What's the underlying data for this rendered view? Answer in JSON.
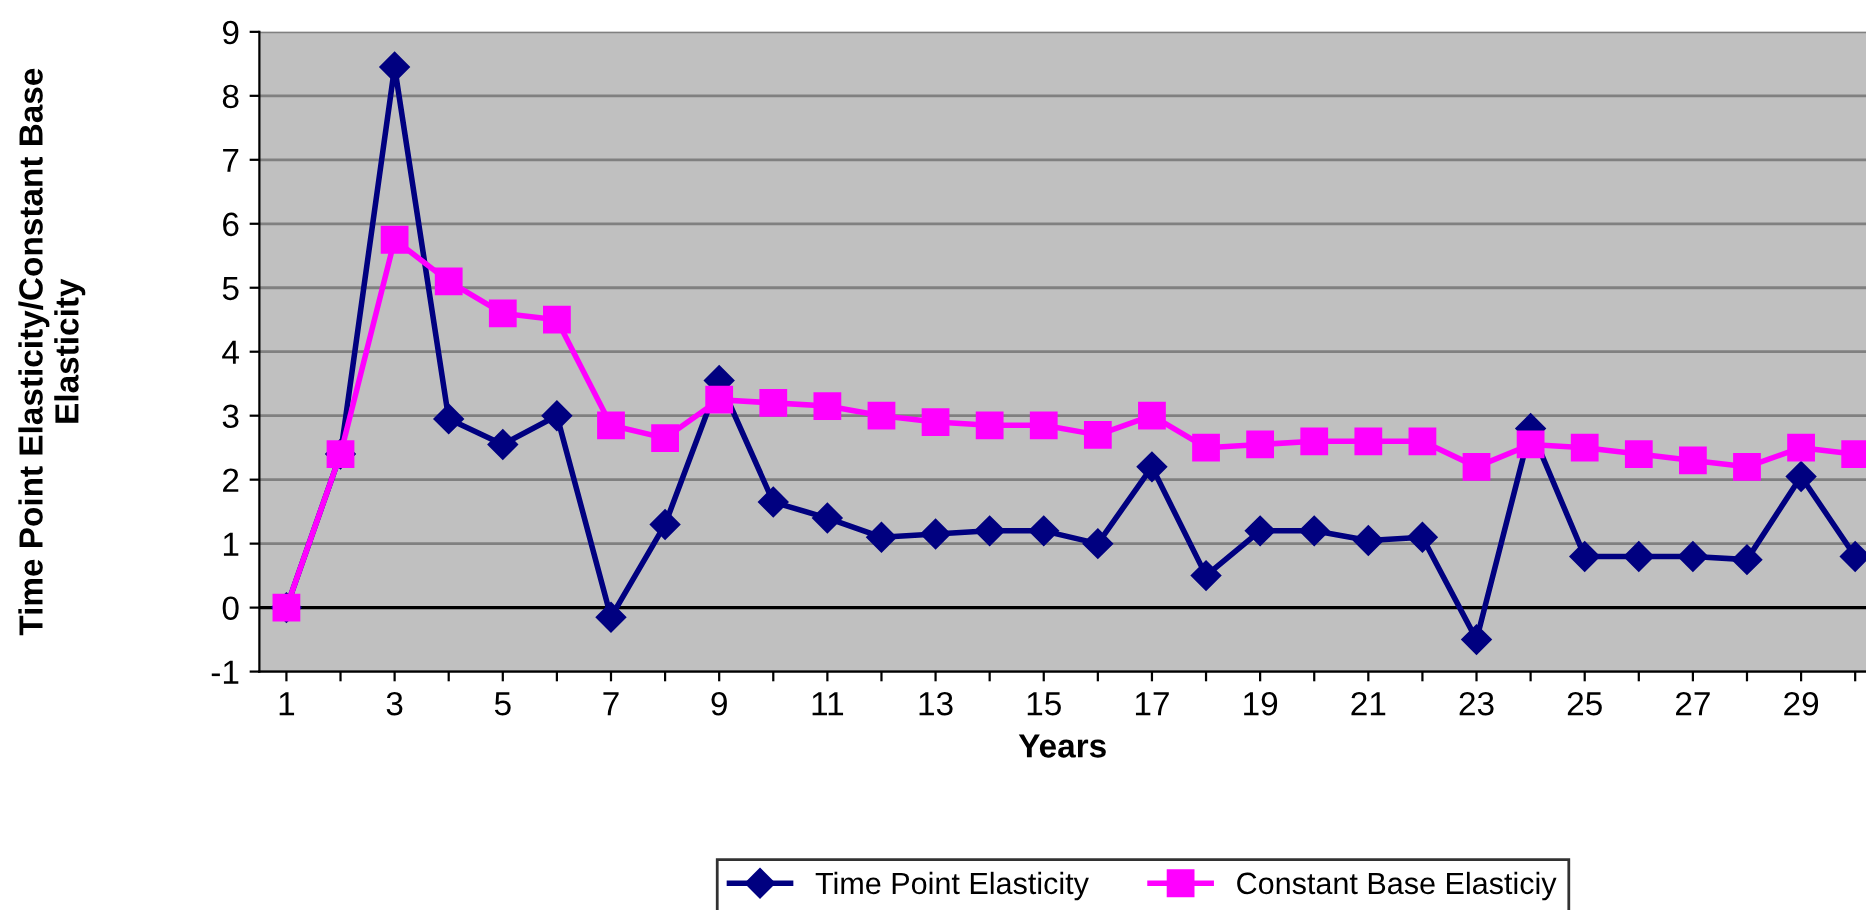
{
  "chart_data": {
    "type": "line",
    "xlabel": "Years",
    "ylabel": "Time Point Elasticity/Constant Base\nElasticity",
    "categories": [
      "1",
      null,
      "3",
      null,
      "5",
      null,
      "7",
      null,
      "9",
      null,
      "11",
      null,
      "13",
      null,
      "15",
      null,
      "17",
      null,
      "19",
      null,
      "21",
      null,
      "23",
      null,
      "25",
      null,
      "27",
      null,
      "29",
      null
    ],
    "series": [
      {
        "name": "Time Point Elasticity",
        "color": "#000080",
        "marker": "diamond",
        "values": [
          0,
          2.4,
          8.45,
          2.95,
          2.55,
          3.0,
          -0.15,
          1.3,
          3.55,
          1.65,
          1.4,
          1.1,
          1.15,
          1.2,
          1.2,
          1.0,
          2.2,
          0.5,
          1.2,
          1.2,
          1.05,
          1.1,
          -0.5,
          2.8,
          0.8,
          0.8,
          0.8,
          0.75,
          2.05,
          0.8
        ]
      },
      {
        "name": "Constant Base Elasticiy",
        "color": "#ff00ff",
        "marker": "square",
        "values": [
          0,
          2.4,
          5.75,
          5.1,
          4.6,
          4.5,
          2.85,
          2.65,
          3.25,
          3.2,
          3.15,
          3.0,
          2.9,
          2.85,
          2.85,
          2.7,
          3.0,
          2.5,
          2.55,
          2.6,
          2.6,
          2.6,
          2.2,
          2.55,
          2.5,
          2.4,
          2.3,
          2.2,
          2.5,
          2.4
        ]
      }
    ],
    "ylim": [
      -1,
      9
    ],
    "yticks": [
      -1,
      0,
      1,
      2,
      3,
      4,
      5,
      6,
      7,
      8,
      9
    ],
    "grid": "y",
    "legend": "bottom",
    "ref_lines": [
      {
        "axis": "y",
        "value": 0,
        "color": "#000000"
      }
    ]
  }
}
